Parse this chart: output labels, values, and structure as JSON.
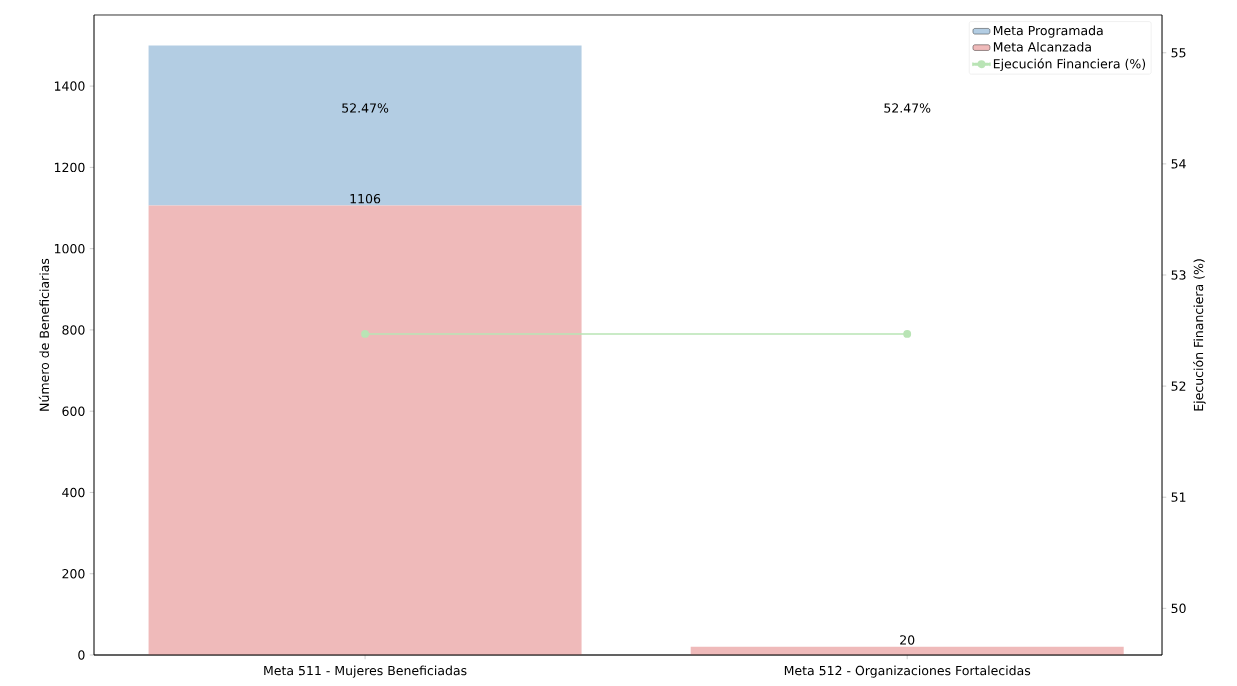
{
  "chart_data": {
    "type": "bar",
    "categories": [
      "Meta 511 - Mujeres Beneficiadas",
      "Meta 512 - Organizaciones Fortalecidas"
    ],
    "ylabel": "Número de Beneficiarias",
    "y2label": "Ejecución Financiera (%)",
    "ylim": [
      0,
      1575
    ],
    "yticks": [
      0,
      200,
      400,
      600,
      800,
      1000,
      1200,
      1400
    ],
    "y2lim": [
      49.58,
      55.34
    ],
    "y2ticks": [
      50,
      51,
      52,
      53,
      54,
      55
    ],
    "legend": "top right",
    "marker": "circle",
    "stacked": true,
    "series": [
      {
        "name": "Meta Alcanzada",
        "color": "#efbaba",
        "values": [
          1106,
          20
        ],
        "value_labels": [
          "1106",
          "20"
        ]
      },
      {
        "name": "Meta Programada",
        "color": "#b3cde3",
        "values": [
          394,
          null
        ]
      },
      {
        "name": "Ejecución Financiera (%)",
        "type": "line",
        "axis": "y2",
        "color": "#b9e4b5",
        "values": [
          52.47,
          52.47
        ]
      }
    ],
    "annotations": [
      "52.47%",
      "52.47%"
    ]
  }
}
